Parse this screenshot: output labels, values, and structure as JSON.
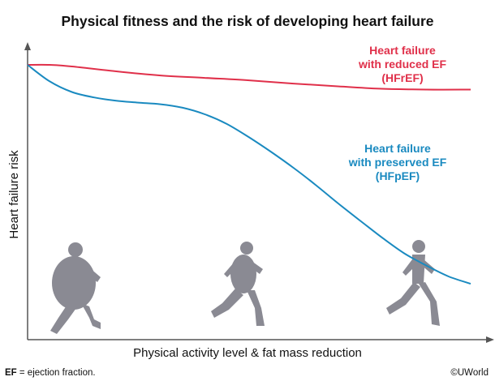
{
  "chart_data": {
    "type": "line",
    "title": "Physical fitness and the risk of developing heart failure",
    "xlabel": "Physical activity level & fat mass reduction",
    "ylabel": "Heart failure risk",
    "xlim": [
      0,
      100
    ],
    "ylim": [
      0,
      100
    ],
    "grid": false,
    "series": [
      {
        "name": "Heart failure with reduced EF (HFrEF)",
        "label_lines": [
          "Heart failure",
          "with reduced EF",
          "(HFrEF)"
        ],
        "color": "#e0304a",
        "x": [
          0,
          5,
          10,
          20,
          30,
          40,
          50,
          60,
          70,
          80,
          90,
          100
        ],
        "y": [
          100,
          100,
          99.4,
          97.6,
          96.1,
          95.2,
          94.3,
          93.1,
          92.1,
          91.2,
          90.9,
          90.9
        ]
      },
      {
        "name": "Heart failure with preserved EF (HFpEF)",
        "label_lines": [
          "Heart failure",
          "with preserved EF",
          "(HFpEF)"
        ],
        "color": "#1a8ac0",
        "x": [
          0,
          5,
          10,
          15,
          20,
          25,
          30,
          35,
          40,
          45,
          50,
          55,
          60,
          65,
          70,
          75,
          80,
          85,
          90,
          95,
          100
        ],
        "y": [
          100,
          93.9,
          90.0,
          88.0,
          86.8,
          86.1,
          85.5,
          84.2,
          81.8,
          78.2,
          73.3,
          67.9,
          62.1,
          55.8,
          49.1,
          42.7,
          36.4,
          30.6,
          26.1,
          22.1,
          19.4
        ]
      }
    ],
    "annotations": [
      {
        "name": "runner-obese",
        "x": 12,
        "shape": "silhouette"
      },
      {
        "name": "runner-overweight",
        "x": 52,
        "shape": "silhouette"
      },
      {
        "name": "runner-lean",
        "x": 91,
        "shape": "silhouette"
      }
    ]
  },
  "footnote": {
    "term": "EF",
    "definition": " = ejection fraction."
  },
  "copyright": "©UWorld",
  "colors": {
    "axis": "#555555",
    "silhouette": "#8a8a93"
  }
}
